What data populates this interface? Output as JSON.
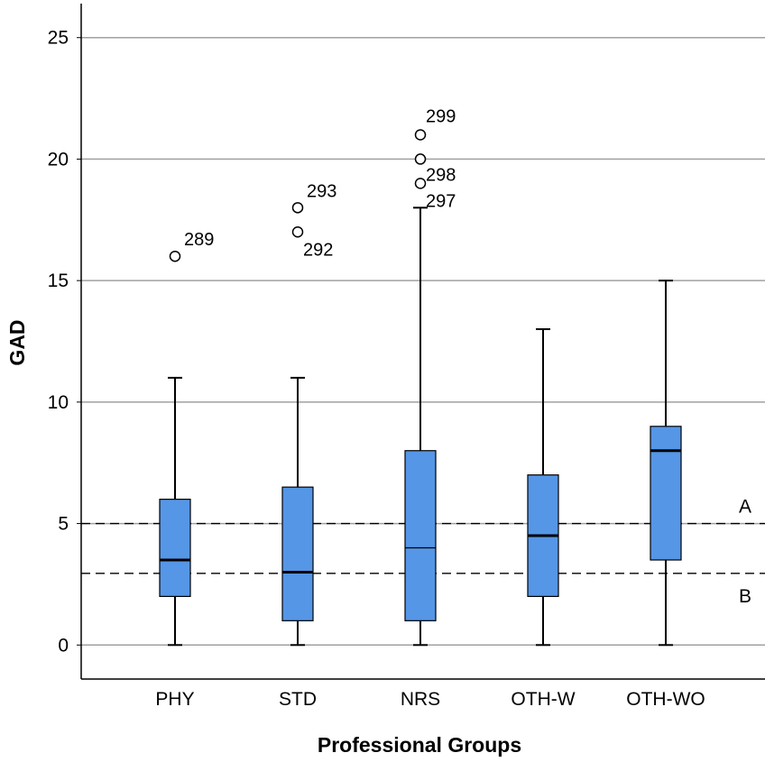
{
  "chart_data": {
    "type": "boxplot",
    "title": "",
    "xlabel": "Professional Groups",
    "ylabel": "GAD",
    "ylim": [
      -1.4,
      26.4
    ],
    "yticks": [
      0,
      5,
      10,
      15,
      20,
      25
    ],
    "grid": true,
    "colors": {
      "box_fill": "#5596e6",
      "grid": "#a0a0a0",
      "axis": "#000000"
    },
    "categories": [
      "PHY",
      "STD",
      "NRS",
      "OTH-W",
      "OTH-WO"
    ],
    "boxes": [
      {
        "name": "PHY",
        "min": 0,
        "q1": 2,
        "median": 3.5,
        "q3": 6,
        "max": 11,
        "outliers": [
          {
            "value": 16,
            "label": "289"
          }
        ]
      },
      {
        "name": "STD",
        "min": 0,
        "q1": 1,
        "median": 3,
        "q3": 6.5,
        "max": 11,
        "outliers": [
          {
            "value": 17,
            "label": "292"
          },
          {
            "value": 18,
            "label": "293"
          }
        ]
      },
      {
        "name": "NRS",
        "min": 0,
        "q1": 1,
        "median": 4,
        "q3": 8,
        "max": 18,
        "outliers": [
          {
            "value": 19,
            "label": "297"
          },
          {
            "value": 20,
            "label": "298"
          },
          {
            "value": 21,
            "label": "299"
          }
        ]
      },
      {
        "name": "OTH-W",
        "min": 0,
        "q1": 2,
        "median": 4.5,
        "q3": 7,
        "max": 13,
        "outliers": []
      },
      {
        "name": "OTH-WO",
        "min": 0,
        "q1": 3.5,
        "median": 8,
        "q3": 9,
        "max": 15,
        "outliers": []
      }
    ],
    "reference_lines": [
      {
        "value": 5,
        "label": "A",
        "style": "dashed"
      },
      {
        "value": 2.95,
        "label": "B",
        "style": "dashed"
      }
    ]
  }
}
